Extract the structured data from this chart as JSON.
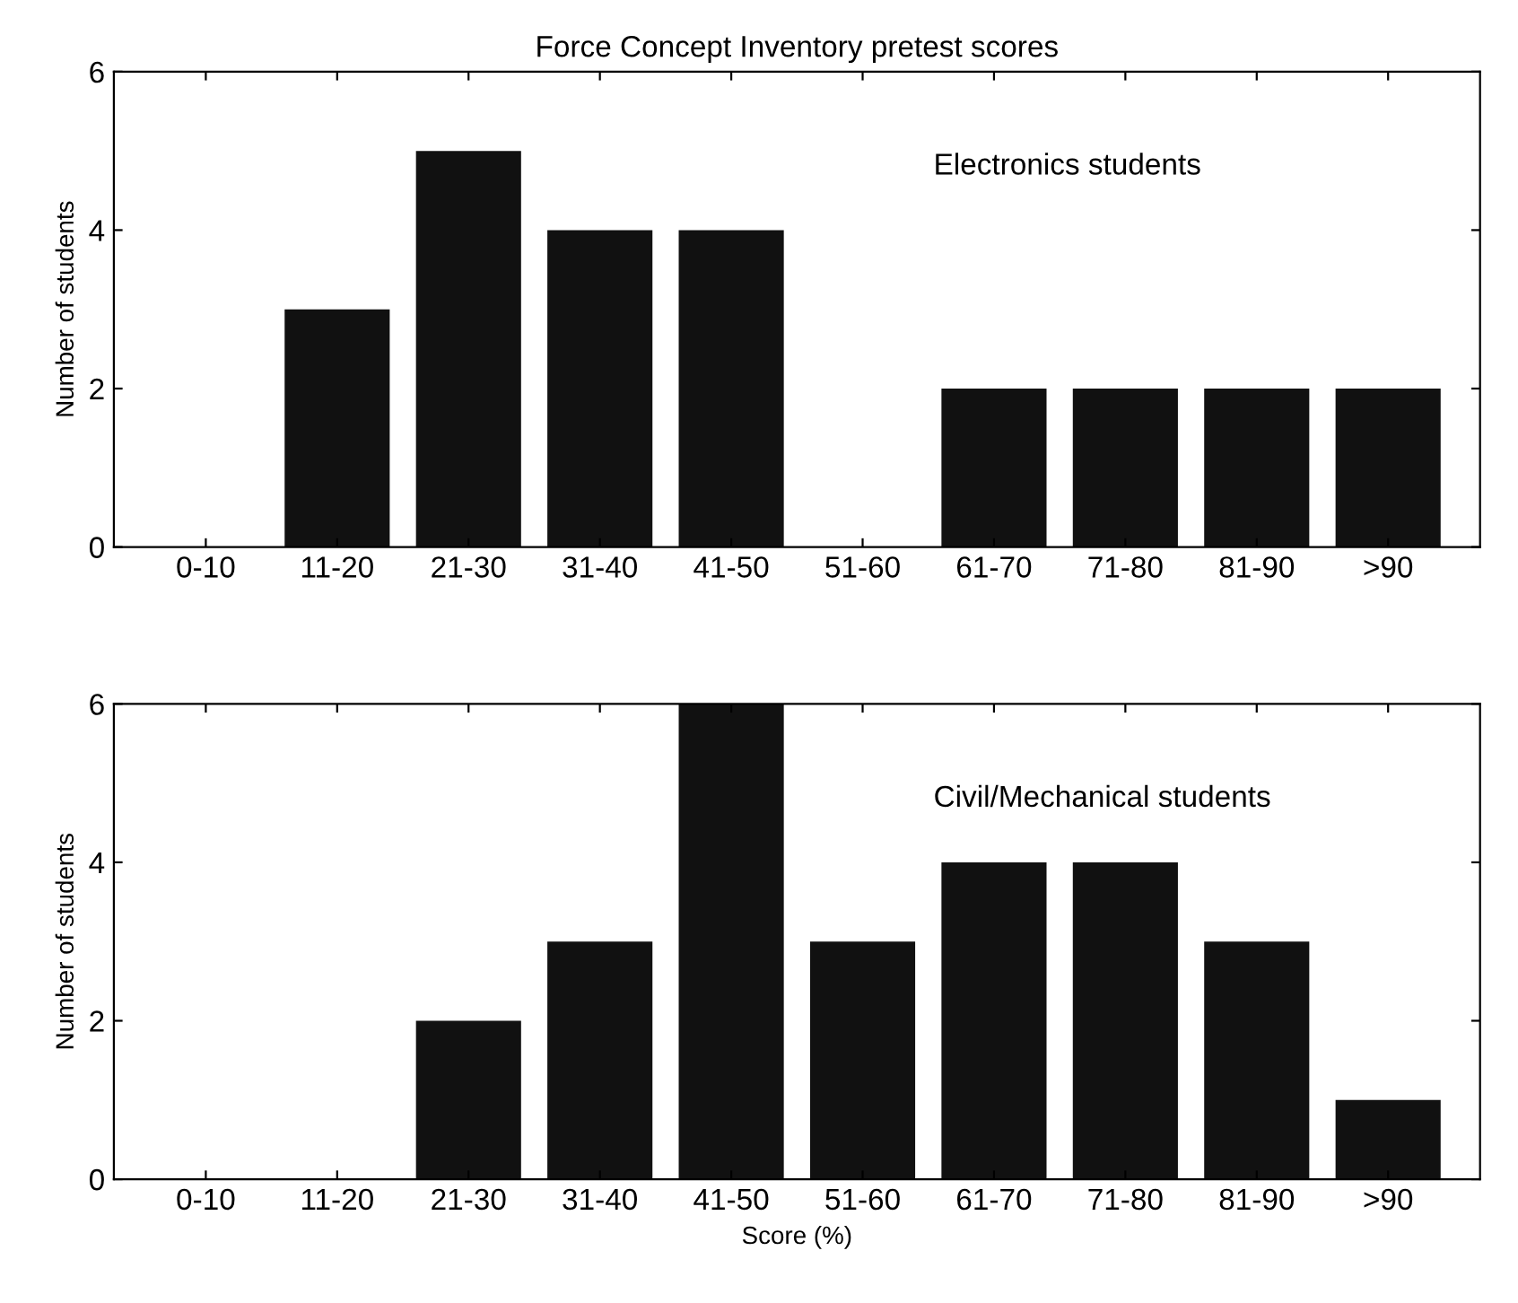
{
  "chart_data": [
    {
      "type": "bar",
      "title": "Force Concept Inventory pretest scores",
      "ylabel": "Number of students",
      "categories": [
        "0-10",
        "11-20",
        "21-30",
        "31-40",
        "41-50",
        "51-60",
        "61-70",
        "71-80",
        "81-90",
        ">90"
      ],
      "values": [
        0,
        3,
        5,
        4,
        4,
        0,
        2,
        2,
        2,
        2
      ],
      "color": "#111111",
      "ylim": [
        0,
        6
      ],
      "yticks": [
        0,
        2,
        4,
        6
      ],
      "grid": false,
      "legend": false,
      "annotations": [
        "Electronics students"
      ]
    },
    {
      "type": "bar",
      "ylabel": "Number of students",
      "xlabel": "Score (%)",
      "categories": [
        "0-10",
        "11-20",
        "21-30",
        "31-40",
        "41-50",
        "51-60",
        "61-70",
        "71-80",
        "81-90",
        ">90"
      ],
      "values": [
        0,
        0,
        2,
        3,
        6,
        3,
        4,
        4,
        3,
        1
      ],
      "color": "#111111",
      "ylim": [
        0,
        6
      ],
      "yticks": [
        0,
        2,
        4,
        6
      ],
      "grid": false,
      "legend": false,
      "annotations": [
        "Civil/Mechanical students"
      ]
    }
  ]
}
